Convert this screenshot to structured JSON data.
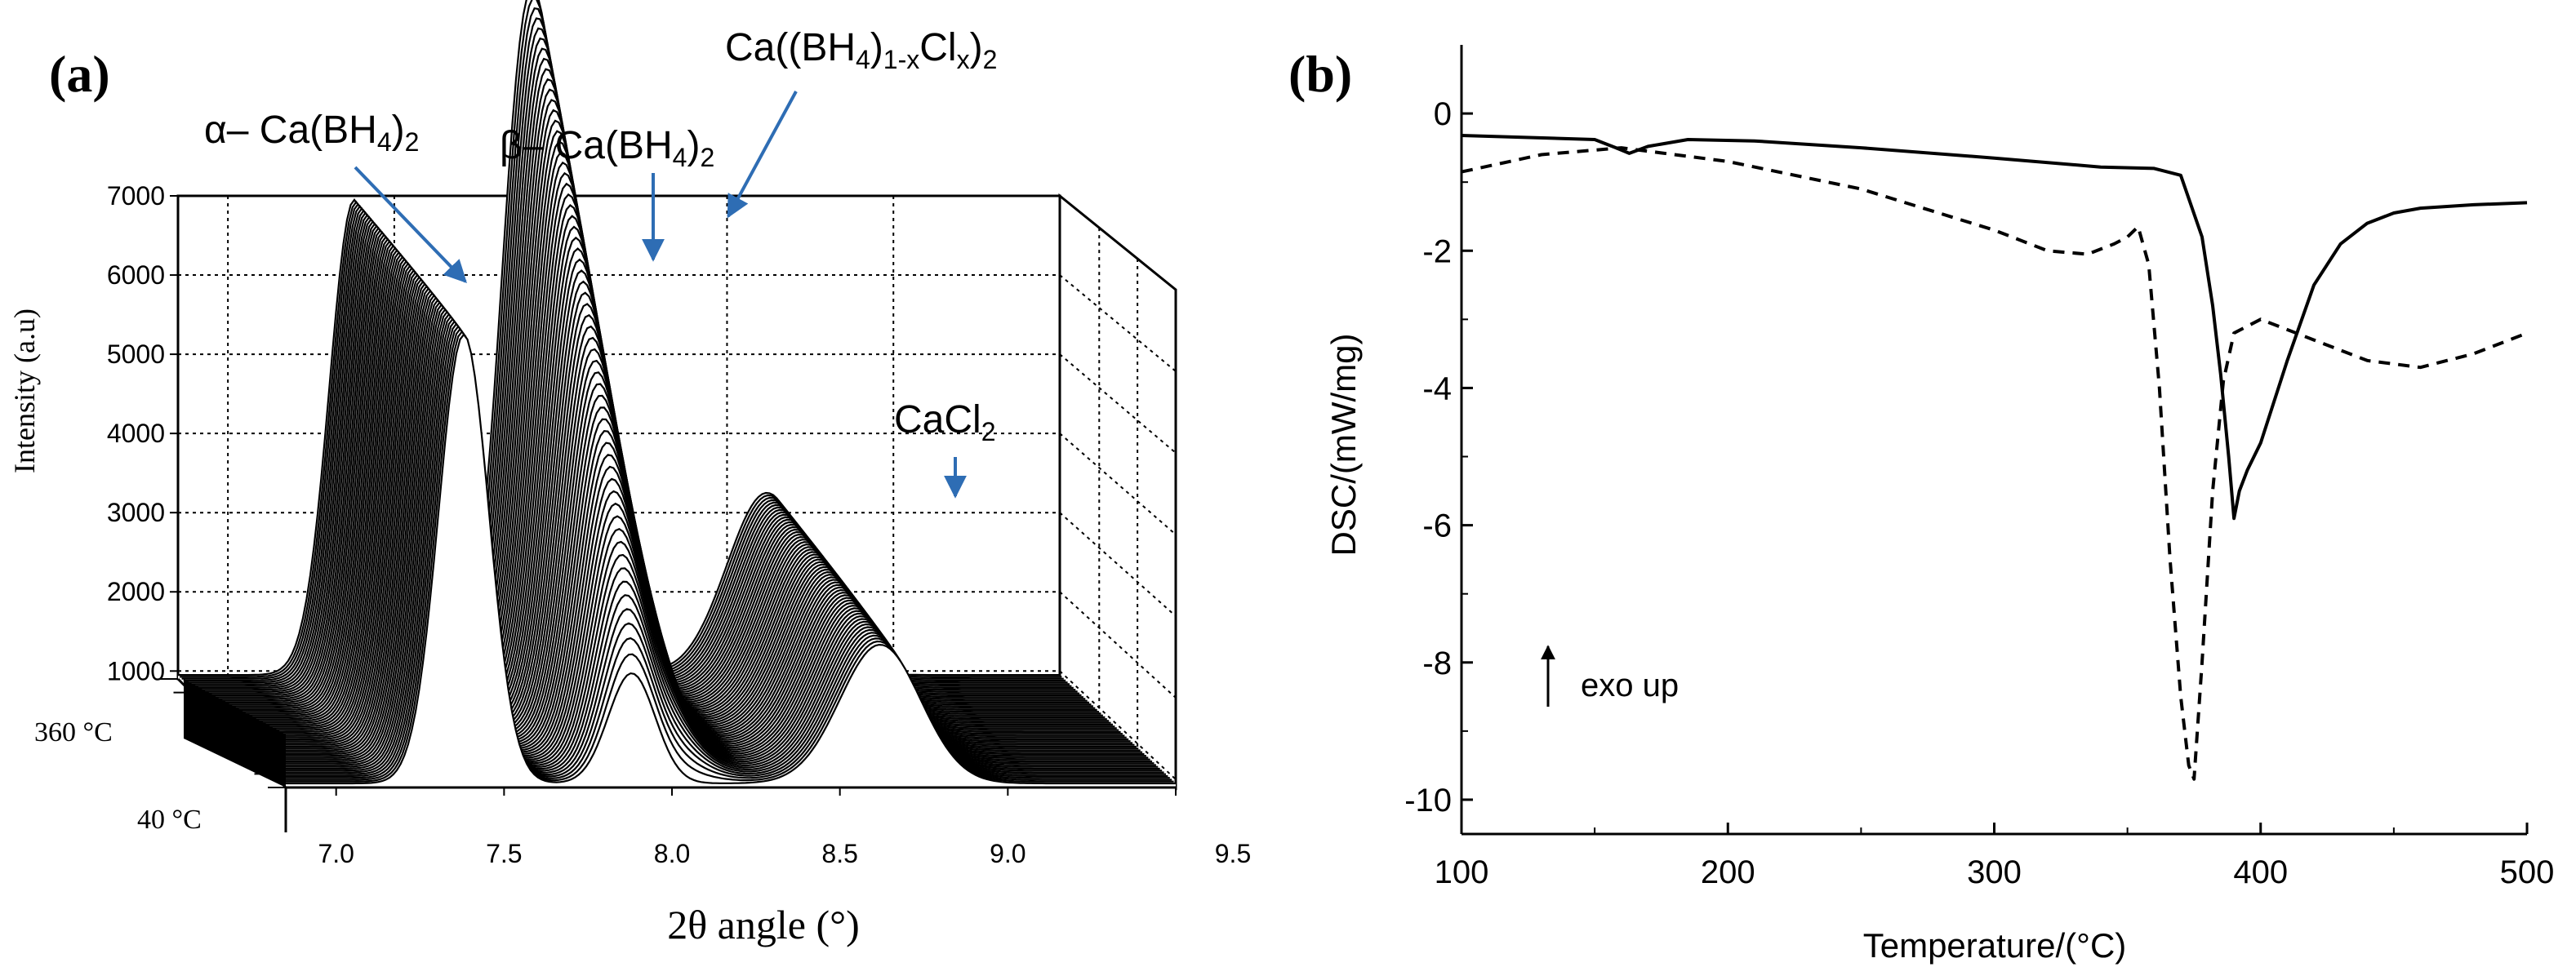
{
  "colors": {
    "ink": "#000000",
    "arrow": "#2e6db4",
    "grid": "#000000",
    "background": "#ffffff"
  },
  "chart_data": [
    {
      "id": "a",
      "type": "line",
      "panel_label": "(a)",
      "title": "",
      "xlabel": "2θ angle (°)",
      "ylabel": "Intensity (a.u)",
      "x_ticks": [
        "7.0",
        "7.5",
        "8.0",
        "8.5",
        "9.0",
        "9.5"
      ],
      "x_tick_values": [
        7.0,
        7.5,
        8.0,
        8.5,
        9.0,
        9.5
      ],
      "xlim": [
        6.85,
        9.5
      ],
      "y_ticks": [
        "1000",
        "2000",
        "3000",
        "4000",
        "5000",
        "6000",
        "7000"
      ],
      "y_tick_values": [
        1000,
        2000,
        3000,
        4000,
        5000,
        6000,
        7000
      ],
      "ylim": [
        900,
        7000
      ],
      "z_labels": [
        "360 °C",
        "40 °C"
      ],
      "z_range_celsius": [
        40,
        360
      ],
      "series_count": 60,
      "peaks": [
        {
          "name": "alpha",
          "center": 7.38,
          "front_intensity": 5500,
          "back_intensity": 6000,
          "width": 0.075
        },
        {
          "name": "beta",
          "center": 7.88,
          "front_intensity": 1350,
          "back_intensity": 4700,
          "width": 0.07
        },
        {
          "name": "solid_solution",
          "center": 7.98,
          "front_intensity": 0,
          "back_intensity": 5600,
          "width": 0.1
        },
        {
          "name": "CaCl2",
          "center": 8.62,
          "front_intensity": 1700,
          "back_intensity": 2300,
          "width": 0.12
        }
      ],
      "annotations": [
        {
          "id": "alpha",
          "prefix": "α– Ca(BH",
          "sub": "4",
          "suffix": ")",
          "sub2": "2"
        },
        {
          "id": "beta",
          "prefix": "β– Ca(BH",
          "sub": "4",
          "suffix": ")",
          "sub2": "2"
        },
        {
          "id": "solid",
          "p1": "Ca((BH",
          "s1": "4",
          "p2": ")",
          "s2": "1-x",
          "p3": "Cl",
          "s3": "x",
          "p4": ")",
          "s4": "2"
        },
        {
          "id": "cacl2",
          "prefix": "CaCl",
          "sub": "2"
        }
      ]
    },
    {
      "id": "b",
      "type": "line",
      "panel_label": "(b)",
      "title": "",
      "xlabel": "Temperature/(°C)",
      "ylabel": "DSC/(mW/mg)",
      "x_ticks": [
        "100",
        "200",
        "300",
        "400",
        "500"
      ],
      "x_tick_values": [
        100,
        200,
        300,
        400,
        500
      ],
      "xlim": [
        100,
        500
      ],
      "y_ticks": [
        "0",
        "-2",
        "-4",
        "-6",
        "-8",
        "-10"
      ],
      "y_tick_values": [
        0,
        -2,
        -4,
        -6,
        -8,
        -10
      ],
      "ylim": [
        -10.5,
        1.0
      ],
      "annotation": "exo up",
      "series": [
        {
          "name": "solid",
          "style": "solid",
          "x": [
            100,
            150,
            158,
            163,
            170,
            185,
            210,
            250,
            300,
            340,
            360,
            370,
            378,
            382,
            385,
            388,
            390,
            392,
            395,
            400,
            410,
            420,
            430,
            440,
            450,
            460,
            480,
            500
          ],
          "y": [
            -0.32,
            -0.38,
            -0.5,
            -0.58,
            -0.48,
            -0.38,
            -0.4,
            -0.5,
            -0.65,
            -0.78,
            -0.8,
            -0.9,
            -1.8,
            -2.8,
            -3.8,
            -5.0,
            -5.9,
            -5.5,
            -5.2,
            -4.8,
            -3.6,
            -2.5,
            -1.9,
            -1.6,
            -1.45,
            -1.38,
            -1.33,
            -1.3
          ]
        },
        {
          "name": "dashed",
          "style": "dashed",
          "x": [
            100,
            130,
            160,
            200,
            250,
            300,
            320,
            335,
            345,
            350,
            354,
            358,
            362,
            366,
            370,
            373,
            375,
            378,
            382,
            386,
            390,
            400,
            420,
            440,
            460,
            480,
            500
          ],
          "y": [
            -0.85,
            -0.6,
            -0.5,
            -0.7,
            -1.1,
            -1.7,
            -2.0,
            -2.05,
            -1.9,
            -1.8,
            -1.65,
            -2.2,
            -4.0,
            -6.5,
            -8.5,
            -9.5,
            -9.7,
            -8.0,
            -5.5,
            -3.9,
            -3.2,
            -3.0,
            -3.3,
            -3.6,
            -3.7,
            -3.5,
            -3.2
          ]
        }
      ]
    }
  ]
}
